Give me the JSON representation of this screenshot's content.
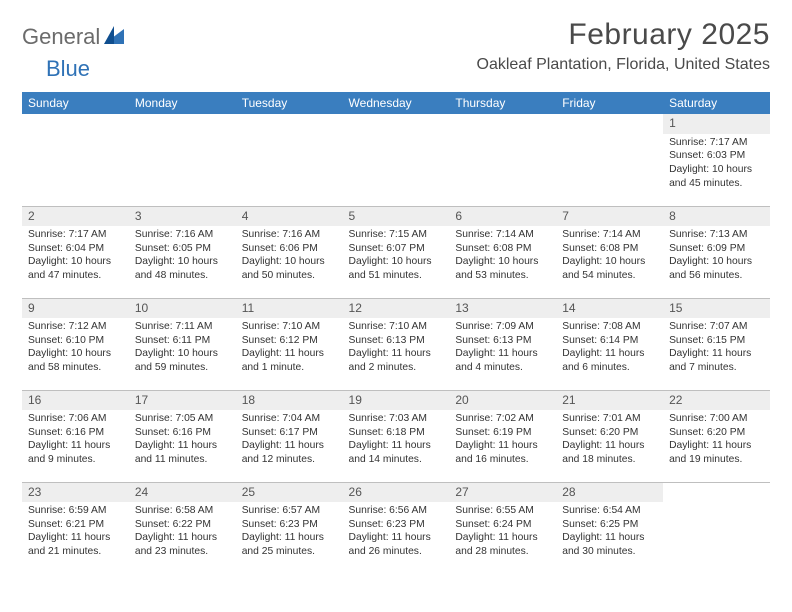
{
  "logo": {
    "text1": "General",
    "text2": "Blue"
  },
  "title": "February 2025",
  "location": "Oakleaf Plantation, Florida, United States",
  "colors": {
    "header_bg": "#3a7ebf",
    "header_text": "#ffffff",
    "daynum_bg": "#eeeeee",
    "border": "#bfbfbf",
    "logo_gray": "#6b6b6b",
    "logo_blue": "#2f72b6"
  },
  "day_headers": [
    "Sunday",
    "Monday",
    "Tuesday",
    "Wednesday",
    "Thursday",
    "Friday",
    "Saturday"
  ],
  "weeks": [
    [
      {
        "n": "",
        "empty": true
      },
      {
        "n": "",
        "empty": true
      },
      {
        "n": "",
        "empty": true
      },
      {
        "n": "",
        "empty": true
      },
      {
        "n": "",
        "empty": true
      },
      {
        "n": "",
        "empty": true
      },
      {
        "n": "1",
        "sr": "Sunrise: 7:17 AM",
        "ss": "Sunset: 6:03 PM",
        "dl1": "Daylight: 10 hours",
        "dl2": "and 45 minutes."
      }
    ],
    [
      {
        "n": "2",
        "sr": "Sunrise: 7:17 AM",
        "ss": "Sunset: 6:04 PM",
        "dl1": "Daylight: 10 hours",
        "dl2": "and 47 minutes."
      },
      {
        "n": "3",
        "sr": "Sunrise: 7:16 AM",
        "ss": "Sunset: 6:05 PM",
        "dl1": "Daylight: 10 hours",
        "dl2": "and 48 minutes."
      },
      {
        "n": "4",
        "sr": "Sunrise: 7:16 AM",
        "ss": "Sunset: 6:06 PM",
        "dl1": "Daylight: 10 hours",
        "dl2": "and 50 minutes."
      },
      {
        "n": "5",
        "sr": "Sunrise: 7:15 AM",
        "ss": "Sunset: 6:07 PM",
        "dl1": "Daylight: 10 hours",
        "dl2": "and 51 minutes."
      },
      {
        "n": "6",
        "sr": "Sunrise: 7:14 AM",
        "ss": "Sunset: 6:08 PM",
        "dl1": "Daylight: 10 hours",
        "dl2": "and 53 minutes."
      },
      {
        "n": "7",
        "sr": "Sunrise: 7:14 AM",
        "ss": "Sunset: 6:08 PM",
        "dl1": "Daylight: 10 hours",
        "dl2": "and 54 minutes."
      },
      {
        "n": "8",
        "sr": "Sunrise: 7:13 AM",
        "ss": "Sunset: 6:09 PM",
        "dl1": "Daylight: 10 hours",
        "dl2": "and 56 minutes."
      }
    ],
    [
      {
        "n": "9",
        "sr": "Sunrise: 7:12 AM",
        "ss": "Sunset: 6:10 PM",
        "dl1": "Daylight: 10 hours",
        "dl2": "and 58 minutes."
      },
      {
        "n": "10",
        "sr": "Sunrise: 7:11 AM",
        "ss": "Sunset: 6:11 PM",
        "dl1": "Daylight: 10 hours",
        "dl2": "and 59 minutes."
      },
      {
        "n": "11",
        "sr": "Sunrise: 7:10 AM",
        "ss": "Sunset: 6:12 PM",
        "dl1": "Daylight: 11 hours",
        "dl2": "and 1 minute."
      },
      {
        "n": "12",
        "sr": "Sunrise: 7:10 AM",
        "ss": "Sunset: 6:13 PM",
        "dl1": "Daylight: 11 hours",
        "dl2": "and 2 minutes."
      },
      {
        "n": "13",
        "sr": "Sunrise: 7:09 AM",
        "ss": "Sunset: 6:13 PM",
        "dl1": "Daylight: 11 hours",
        "dl2": "and 4 minutes."
      },
      {
        "n": "14",
        "sr": "Sunrise: 7:08 AM",
        "ss": "Sunset: 6:14 PM",
        "dl1": "Daylight: 11 hours",
        "dl2": "and 6 minutes."
      },
      {
        "n": "15",
        "sr": "Sunrise: 7:07 AM",
        "ss": "Sunset: 6:15 PM",
        "dl1": "Daylight: 11 hours",
        "dl2": "and 7 minutes."
      }
    ],
    [
      {
        "n": "16",
        "sr": "Sunrise: 7:06 AM",
        "ss": "Sunset: 6:16 PM",
        "dl1": "Daylight: 11 hours",
        "dl2": "and 9 minutes."
      },
      {
        "n": "17",
        "sr": "Sunrise: 7:05 AM",
        "ss": "Sunset: 6:16 PM",
        "dl1": "Daylight: 11 hours",
        "dl2": "and 11 minutes."
      },
      {
        "n": "18",
        "sr": "Sunrise: 7:04 AM",
        "ss": "Sunset: 6:17 PM",
        "dl1": "Daylight: 11 hours",
        "dl2": "and 12 minutes."
      },
      {
        "n": "19",
        "sr": "Sunrise: 7:03 AM",
        "ss": "Sunset: 6:18 PM",
        "dl1": "Daylight: 11 hours",
        "dl2": "and 14 minutes."
      },
      {
        "n": "20",
        "sr": "Sunrise: 7:02 AM",
        "ss": "Sunset: 6:19 PM",
        "dl1": "Daylight: 11 hours",
        "dl2": "and 16 minutes."
      },
      {
        "n": "21",
        "sr": "Sunrise: 7:01 AM",
        "ss": "Sunset: 6:20 PM",
        "dl1": "Daylight: 11 hours",
        "dl2": "and 18 minutes."
      },
      {
        "n": "22",
        "sr": "Sunrise: 7:00 AM",
        "ss": "Sunset: 6:20 PM",
        "dl1": "Daylight: 11 hours",
        "dl2": "and 19 minutes."
      }
    ],
    [
      {
        "n": "23",
        "sr": "Sunrise: 6:59 AM",
        "ss": "Sunset: 6:21 PM",
        "dl1": "Daylight: 11 hours",
        "dl2": "and 21 minutes."
      },
      {
        "n": "24",
        "sr": "Sunrise: 6:58 AM",
        "ss": "Sunset: 6:22 PM",
        "dl1": "Daylight: 11 hours",
        "dl2": "and 23 minutes."
      },
      {
        "n": "25",
        "sr": "Sunrise: 6:57 AM",
        "ss": "Sunset: 6:23 PM",
        "dl1": "Daylight: 11 hours",
        "dl2": "and 25 minutes."
      },
      {
        "n": "26",
        "sr": "Sunrise: 6:56 AM",
        "ss": "Sunset: 6:23 PM",
        "dl1": "Daylight: 11 hours",
        "dl2": "and 26 minutes."
      },
      {
        "n": "27",
        "sr": "Sunrise: 6:55 AM",
        "ss": "Sunset: 6:24 PM",
        "dl1": "Daylight: 11 hours",
        "dl2": "and 28 minutes."
      },
      {
        "n": "28",
        "sr": "Sunrise: 6:54 AM",
        "ss": "Sunset: 6:25 PM",
        "dl1": "Daylight: 11 hours",
        "dl2": "and 30 minutes."
      },
      {
        "n": "",
        "empty": true
      }
    ]
  ]
}
